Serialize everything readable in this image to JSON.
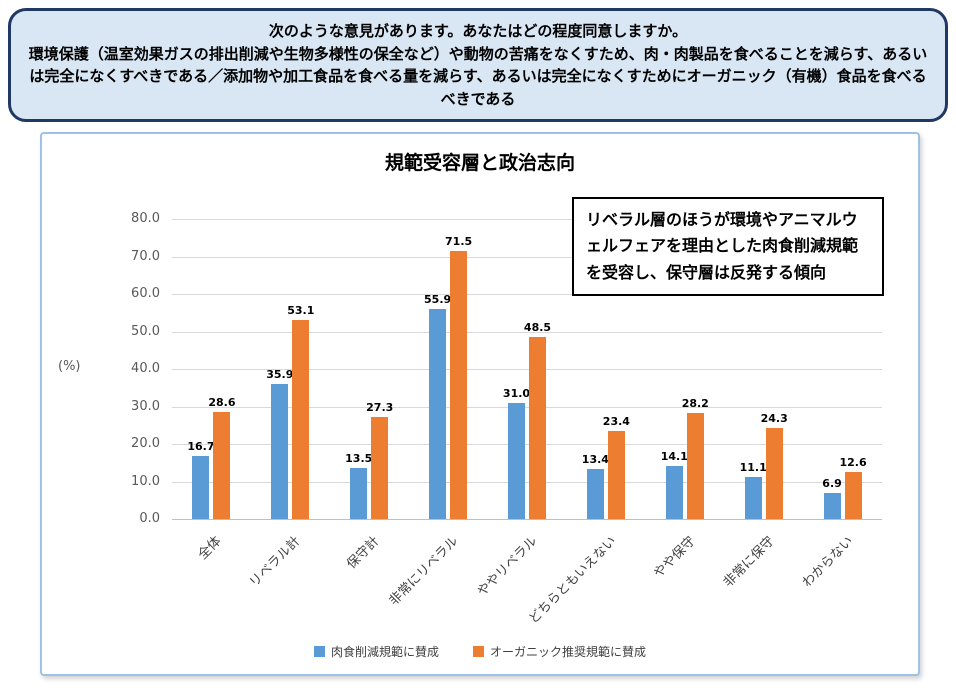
{
  "banner": {
    "line1": "次のような意見があります。あなたはどの程度同意しますか。",
    "line2": "環境保護（温室効果ガスの排出削減や生物多様性の保全など）や動物の苦痛をなくすため、肉・肉製品を食べることを減らす、あるいは完全になくすべきである／添加物や加工食品を食べる量を減らす、あるいは完全になくすためにオーガニック（有機）食品を食べるべきである"
  },
  "chart": {
    "title": "規範受容層と政治志向",
    "ylabel": "(%)",
    "annotation": "リベラル層のほうが環境やアニマルウェルフェアを理由とした肉食削減規範を受容し、保守層は反発する傾向"
  },
  "chart_data": {
    "type": "bar",
    "title": "規範受容層と政治志向",
    "categories": [
      "全体",
      "リベラル計",
      "保守計",
      "非常にリベラル",
      "ややリベラル",
      "どちらともいえない",
      "やや保守",
      "非常に保守",
      "わからない"
    ],
    "series": [
      {
        "name": "肉食削減規範に賛成",
        "color": "#5b9bd5",
        "values": [
          16.7,
          35.9,
          13.5,
          55.9,
          31.0,
          13.4,
          14.1,
          11.1,
          6.9
        ]
      },
      {
        "name": "オーガニック推奨規範に賛成",
        "color": "#ed7d31",
        "values": [
          28.6,
          53.1,
          27.3,
          71.5,
          48.5,
          23.4,
          28.2,
          24.3,
          12.6
        ]
      }
    ],
    "xlabel": "",
    "ylabel": "(%)",
    "ylim": [
      0,
      80
    ],
    "ytick_step": 10,
    "grid": true,
    "legend_position": "bottom"
  }
}
